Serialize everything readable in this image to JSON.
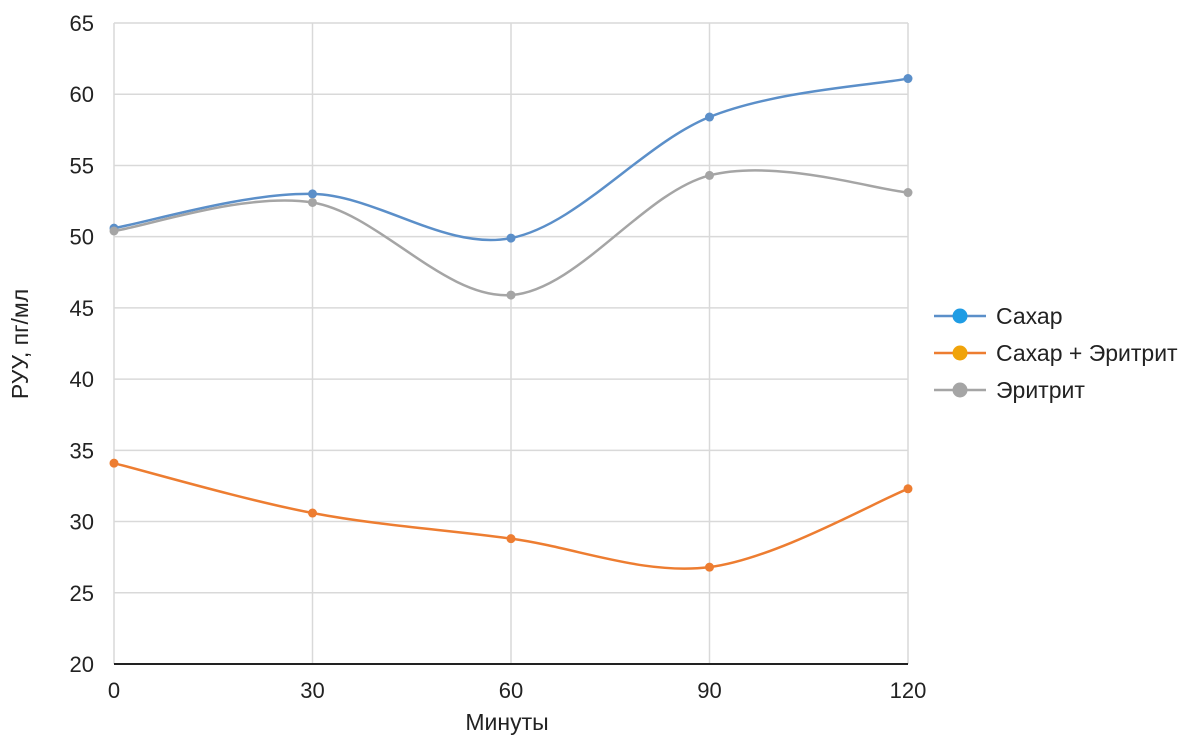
{
  "chart_data": {
    "type": "line",
    "title": "",
    "xlabel": "Минуты",
    "ylabel": "РУУ, пг/мл",
    "x": [
      0,
      30,
      60,
      90,
      120
    ],
    "x_tick_labels": [
      "0",
      "30",
      "60",
      "90",
      "120"
    ],
    "xlim": [
      0,
      120
    ],
    "ylim": [
      20,
      65
    ],
    "y_ticks": [
      20,
      25,
      30,
      35,
      40,
      45,
      50,
      55,
      60,
      65
    ],
    "y_tick_labels": [
      "20",
      "25",
      "30",
      "35",
      "40",
      "45",
      "50",
      "55",
      "60",
      "65"
    ],
    "grid": true,
    "smooth": true,
    "legend_position": "right",
    "series": [
      {
        "name": "Сахар",
        "values": [
          50.6,
          53.0,
          49.9,
          58.4,
          61.1
        ],
        "line_color": "#5b8fc9",
        "legend_color": "#1f9ce4"
      },
      {
        "name": "Сахар + Эритрит",
        "values": [
          34.1,
          30.6,
          28.8,
          26.8,
          32.3
        ],
        "line_color": "#ed7d31",
        "legend_color": "#f0a30a"
      },
      {
        "name": "Эритрит",
        "values": [
          50.4,
          52.4,
          45.9,
          54.3,
          53.1
        ],
        "line_color": "#a5a5a5",
        "legend_color": "#a5a5a5"
      }
    ]
  }
}
